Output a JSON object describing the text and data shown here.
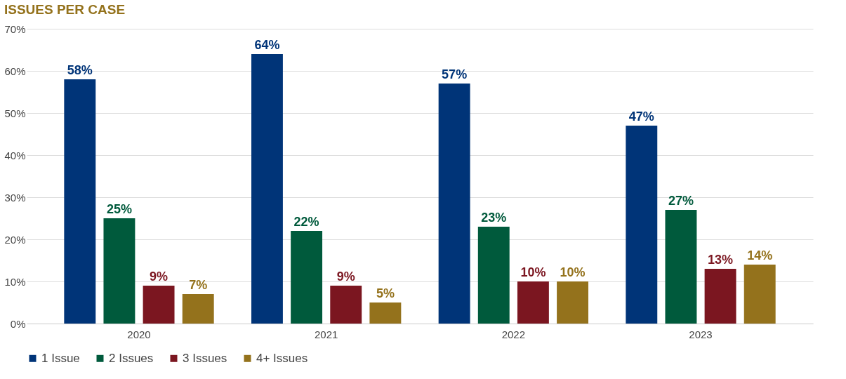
{
  "chart_data": {
    "type": "bar",
    "title": "ISSUES PER CASE",
    "categories": [
      "2020",
      "2021",
      "2022",
      "2023"
    ],
    "series": [
      {
        "name": "1 Issue",
        "color": "#003478",
        "values": [
          58,
          64,
          57,
          47
        ],
        "value_labels": [
          "58%",
          "64%",
          "57%",
          "47%"
        ]
      },
      {
        "name": "2 Issues",
        "color": "#005a3c",
        "values": [
          25,
          22,
          23,
          27
        ],
        "value_labels": [
          "25%",
          "22%",
          "23%",
          "27%"
        ]
      },
      {
        "name": "3 Issues",
        "color": "#7b1620",
        "values": [
          9,
          9,
          10,
          13
        ],
        "value_labels": [
          "9%",
          "9%",
          "10%",
          "13%"
        ]
      },
      {
        "name": "4+ Issues",
        "color": "#94721c",
        "values": [
          7,
          5,
          10,
          14
        ],
        "value_labels": [
          "7%",
          "5%",
          "10%",
          "14%"
        ]
      }
    ],
    "ylim": [
      0,
      70
    ],
    "yticks": [
      {
        "value": 0,
        "label": "0%"
      },
      {
        "value": 10,
        "label": "10%"
      },
      {
        "value": 20,
        "label": "20%"
      },
      {
        "value": 30,
        "label": "30%"
      },
      {
        "value": 40,
        "label": "40%"
      },
      {
        "value": 50,
        "label": "50%"
      },
      {
        "value": 60,
        "label": "60%"
      },
      {
        "value": 70,
        "label": "70%"
      }
    ],
    "grid": "y",
    "legend": "bottom"
  }
}
